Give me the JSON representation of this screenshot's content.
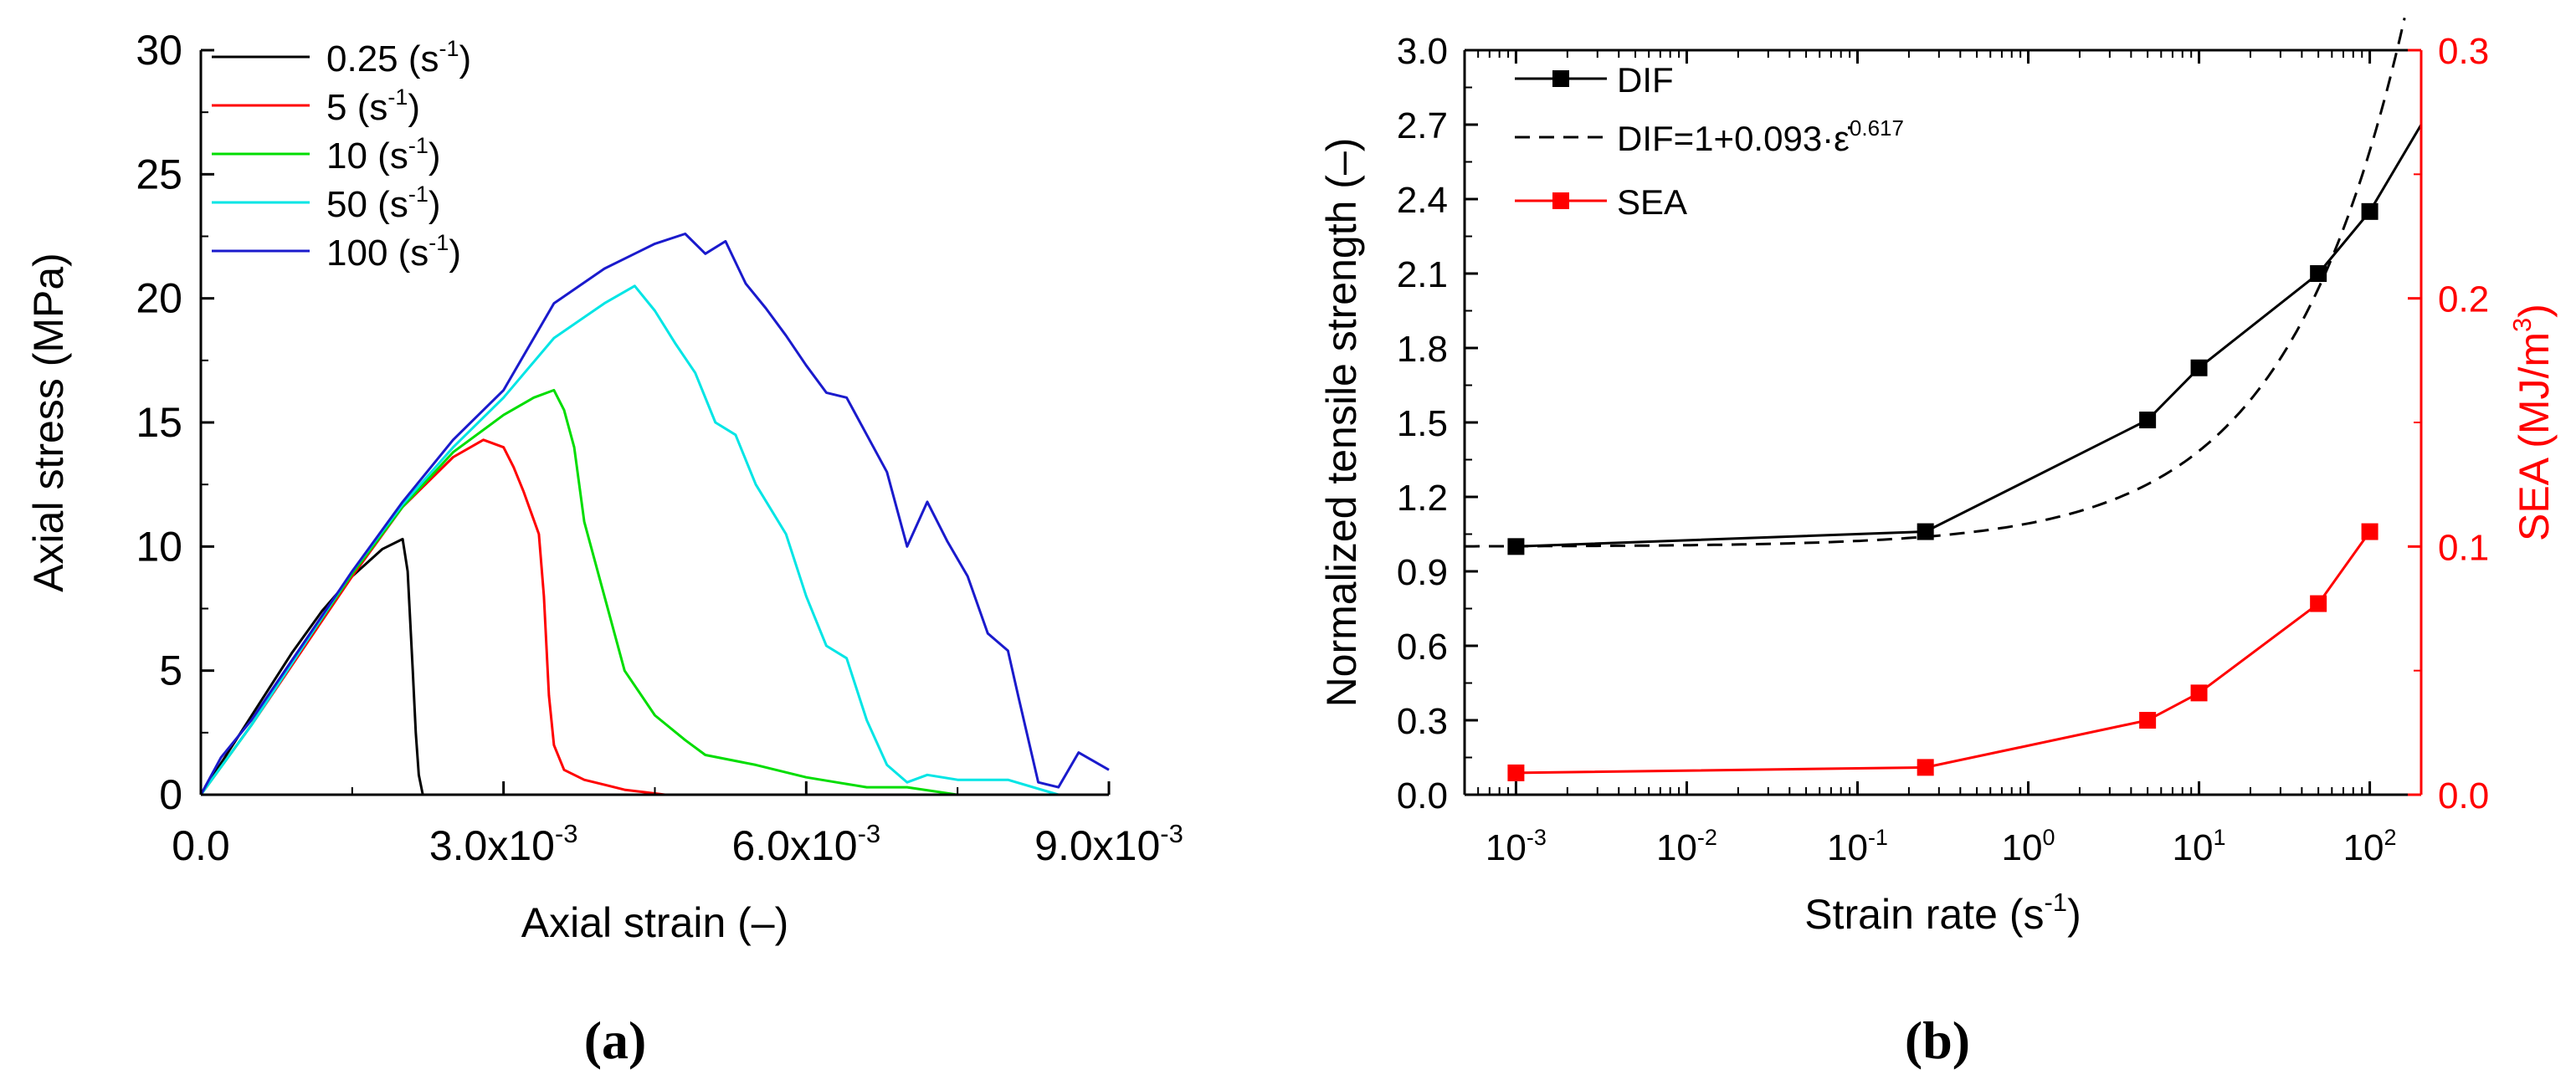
{
  "chart_data": [
    {
      "panel_label": "a",
      "type": "line",
      "xlabel": "Axial strain (–)",
      "ylabel": "Axial stress (MPa)",
      "xlim": [
        0,
        0.009
      ],
      "ylim": [
        0,
        30
      ],
      "xticks": [
        0,
        0.003,
        0.006,
        0.009
      ],
      "xtick_labels": [
        {
          "mant": "0.0",
          "exp": ""
        },
        {
          "mant": "3.0x10",
          "exp": "-3"
        },
        {
          "mant": "6.0x10",
          "exp": "-3"
        },
        {
          "mant": "9.0x10",
          "exp": "-3"
        }
      ],
      "yticks": [
        0,
        5,
        10,
        15,
        20,
        25,
        30
      ],
      "legend_position": "top-left",
      "series": [
        {
          "name": "0.25",
          "unit": "(s",
          "unit_exp": "-1",
          "unit_close": ")",
          "color": "#000000",
          "x": [
            0,
            0.0003,
            0.0006,
            0.0009,
            0.0012,
            0.0015,
            0.0018,
            0.002,
            0.00205,
            0.0021,
            0.00213,
            0.00216,
            0.0022
          ],
          "y": [
            0,
            1.9,
            3.8,
            5.7,
            7.4,
            8.8,
            9.9,
            10.3,
            9,
            5,
            2.5,
            0.8,
            0
          ]
        },
        {
          "name": "5",
          "unit": "(s",
          "unit_exp": "-1",
          "unit_close": ")",
          "color": "#ff0000",
          "x": [
            0,
            0.0005,
            0.001,
            0.0015,
            0.002,
            0.0025,
            0.0028,
            0.003,
            0.0031,
            0.0032,
            0.00335,
            0.0034,
            0.00345,
            0.0035,
            0.0036,
            0.0038,
            0.004,
            0.0042,
            0.0044,
            0.0046
          ],
          "y": [
            0,
            2.8,
            5.8,
            8.8,
            11.6,
            13.6,
            14.3,
            14,
            13.2,
            12.2,
            10.5,
            8,
            4,
            2,
            1,
            0.6,
            0.4,
            0.2,
            0.1,
            0
          ]
        },
        {
          "name": "10",
          "unit": "(s",
          "unit_exp": "-1",
          "unit_close": ")",
          "color": "#00dd00",
          "x": [
            0,
            0.0005,
            0.001,
            0.0015,
            0.002,
            0.0025,
            0.003,
            0.0033,
            0.0035,
            0.0036,
            0.0037,
            0.0038,
            0.004,
            0.0042,
            0.0045,
            0.0048,
            0.005,
            0.0055,
            0.006,
            0.0063,
            0.0066,
            0.007,
            0.0075
          ],
          "y": [
            0,
            2.8,
            5.9,
            8.9,
            11.6,
            13.8,
            15.3,
            16,
            16.3,
            15.5,
            14,
            11,
            8,
            5,
            3.2,
            2.2,
            1.6,
            1.2,
            0.7,
            0.5,
            0.3,
            0.3,
            0
          ]
        },
        {
          "name": "50",
          "unit": "(s",
          "unit_exp": "-1",
          "unit_close": ")",
          "color": "#00e5e5",
          "x": [
            0,
            0.0005,
            0.001,
            0.0015,
            0.002,
            0.0025,
            0.003,
            0.0035,
            0.004,
            0.0043,
            0.0045,
            0.0047,
            0.0049,
            0.0051,
            0.0053,
            0.0055,
            0.0058,
            0.006,
            0.0062,
            0.0064,
            0.0066,
            0.0068,
            0.007,
            0.0072,
            0.0075,
            0.008,
            0.0085
          ],
          "y": [
            0,
            2.8,
            5.9,
            9,
            11.7,
            14,
            16,
            18.4,
            19.8,
            20.5,
            19.5,
            18.2,
            17,
            15,
            14.5,
            12.5,
            10.5,
            8,
            6,
            5.5,
            3,
            1.2,
            0.5,
            0.8,
            0.6,
            0.6,
            0
          ]
        },
        {
          "name": "100",
          "unit": "(s",
          "unit_exp": "-1",
          "unit_close": ")",
          "color": "#1a1acc",
          "x": [
            0,
            0.0002,
            0.0005,
            0.001,
            0.0015,
            0.002,
            0.0025,
            0.003,
            0.0035,
            0.004,
            0.0045,
            0.0048,
            0.005,
            0.0052,
            0.0054,
            0.0056,
            0.0058,
            0.006,
            0.0062,
            0.0064,
            0.0066,
            0.0068,
            0.007,
            0.0072,
            0.0074,
            0.0076,
            0.0078,
            0.008,
            0.0081,
            0.0083,
            0.0085,
            0.0087,
            0.009
          ],
          "y": [
            0,
            1.5,
            3,
            6,
            9,
            11.8,
            14.3,
            16.3,
            19.8,
            21.2,
            22.2,
            22.6,
            21.8,
            22.3,
            20.6,
            19.6,
            18.5,
            17.3,
            16.2,
            16,
            14.5,
            13,
            10,
            11.8,
            10.2,
            8.8,
            6.5,
            5.8,
            4,
            0.5,
            0.3,
            1.7,
            1.0
          ]
        }
      ]
    },
    {
      "panel_label": "b",
      "type": "line",
      "xscale": "log",
      "xlabel": "Strain rate (s",
      "xlabel_exp": "-1",
      "xlabel_close": ")",
      "ylabel": "Normalized tensile strength (–)",
      "y2label": "SEA (MJ/m",
      "y2label_exp": "3",
      "y2label_close": ")",
      "xlim": [
        0.0005,
        200
      ],
      "ylim": [
        0,
        3.0
      ],
      "y2lim": [
        0,
        0.3
      ],
      "xticks": [
        0.001,
        0.01,
        0.1,
        1,
        10,
        100
      ],
      "xtick_labels": [
        {
          "mant": "10",
          "exp": "-3"
        },
        {
          "mant": "10",
          "exp": "-2"
        },
        {
          "mant": "10",
          "exp": "-1"
        },
        {
          "mant": "10",
          "exp": "0"
        },
        {
          "mant": "10",
          "exp": "1"
        },
        {
          "mant": "10",
          "exp": "2"
        }
      ],
      "yticks": [
        0.0,
        0.3,
        0.6,
        0.9,
        1.2,
        1.5,
        1.8,
        2.1,
        2.4,
        2.7,
        3.0
      ],
      "ytick_labels": [
        "0.0",
        "0.3",
        "0.6",
        "0.9",
        "1.2",
        "1.5",
        "1.8",
        "2.1",
        "2.4",
        "2.7",
        "3.0"
      ],
      "y2ticks": [
        0.0,
        0.1,
        0.2,
        0.3
      ],
      "y2tick_labels": [
        "0.0",
        "0.1",
        "0.2",
        "0.3"
      ],
      "y2_color": "#ff0000",
      "legend_position": "top-left",
      "series": [
        {
          "name": "DIF",
          "style": "solid-marker",
          "axis": "left",
          "color": "#000000",
          "x": [
            0.001,
            0.25,
            5,
            10,
            50,
            100,
            200
          ],
          "y": [
            1.0,
            1.06,
            1.51,
            1.72,
            2.1,
            2.35,
            2.7
          ],
          "marker_count": 6
        },
        {
          "name": "DIF=1+0.093·",
          "name_symbol": "ε̇",
          "name_exp": "0.617",
          "style": "dashed",
          "axis": "left",
          "color": "#000000",
          "fit": {
            "a": 1,
            "b": 0.093,
            "p": 0.617
          },
          "x_range": [
            0.0005,
            160
          ]
        },
        {
          "name": "SEA",
          "style": "solid-marker",
          "axis": "right",
          "color": "#ff0000",
          "x": [
            0.001,
            0.25,
            5,
            10,
            50,
            100
          ],
          "y": [
            0.0088,
            0.011,
            0.03,
            0.041,
            0.077,
            0.106
          ],
          "marker_count": 6
        }
      ]
    }
  ]
}
